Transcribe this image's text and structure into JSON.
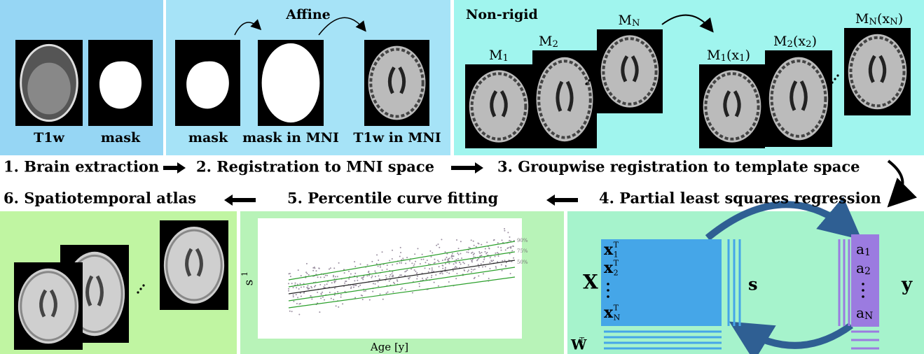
{
  "panels": {
    "brain_extraction": {
      "labels": [
        "T1w",
        "mask"
      ]
    },
    "affine": {
      "title": "Affine",
      "labels": [
        "mask",
        "mask in MNI",
        "T1w in MNI"
      ]
    },
    "non_rigid": {
      "title": "Non-rigid",
      "labels": [
        [
          "M",
          "1"
        ],
        [
          "M",
          "2"
        ],
        [
          "M",
          "N"
        ],
        [
          "M",
          "1",
          "(x",
          "1",
          ")"
        ],
        [
          "M",
          "2",
          "(x",
          "2",
          ")"
        ],
        [
          "M",
          "N",
          "(x",
          "N",
          ")"
        ]
      ]
    },
    "pls": {
      "matrix": "X",
      "rows": [
        {
          "base": "x",
          "sup": "T",
          "sub": "1"
        },
        {
          "base": "x",
          "sup": "T",
          "sub": "2"
        },
        {
          "base": "x",
          "sup": "T",
          "sub": "N"
        }
      ],
      "scores": "s",
      "response": "y",
      "entries": [
        [
          "a",
          "1"
        ],
        [
          "a",
          "2"
        ],
        [
          "a",
          "N"
        ]
      ],
      "weights": {
        "base": "W",
        "sup": "T"
      }
    },
    "percentile": {
      "y_label": {
        "base": "s",
        "sup": "1"
      },
      "x_label": "Age [y]",
      "curves": [
        "90%",
        "75%",
        "50%"
      ]
    }
  },
  "steps": [
    "1. Brain extraction",
    "2. Registration to MNI space",
    "3. Groupwise registration to template space",
    "4. Partial least squares regression",
    "5. Percentile curve fitting",
    "6. Spatiotemporal atlas"
  ]
}
